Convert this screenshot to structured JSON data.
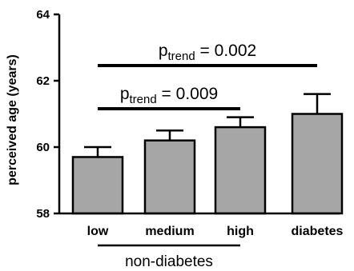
{
  "chart_data": {
    "type": "bar",
    "title": "",
    "xlabel": "",
    "ylabel": "perceived age (years)",
    "ylim": [
      58,
      64
    ],
    "yticks": [
      58,
      60,
      62,
      64
    ],
    "categories": [
      "low",
      "medium",
      "high",
      "diabetes"
    ],
    "values": [
      59.7,
      60.2,
      60.6,
      61.0
    ],
    "error_upper": [
      60.0,
      60.5,
      60.9,
      61.6
    ],
    "bar_color": "#a6a6a6",
    "grid": false,
    "group_label": "non-diabetes",
    "group_members": [
      "low",
      "medium",
      "high"
    ],
    "annotations": [
      {
        "p_main": "p",
        "p_sub": "trend",
        "p_rest": " = 0.002",
        "from": "low",
        "to": "diabetes"
      },
      {
        "p_main": "p",
        "p_sub": "trend",
        "p_rest": " = 0.009",
        "from": "low",
        "to": "high"
      }
    ]
  }
}
